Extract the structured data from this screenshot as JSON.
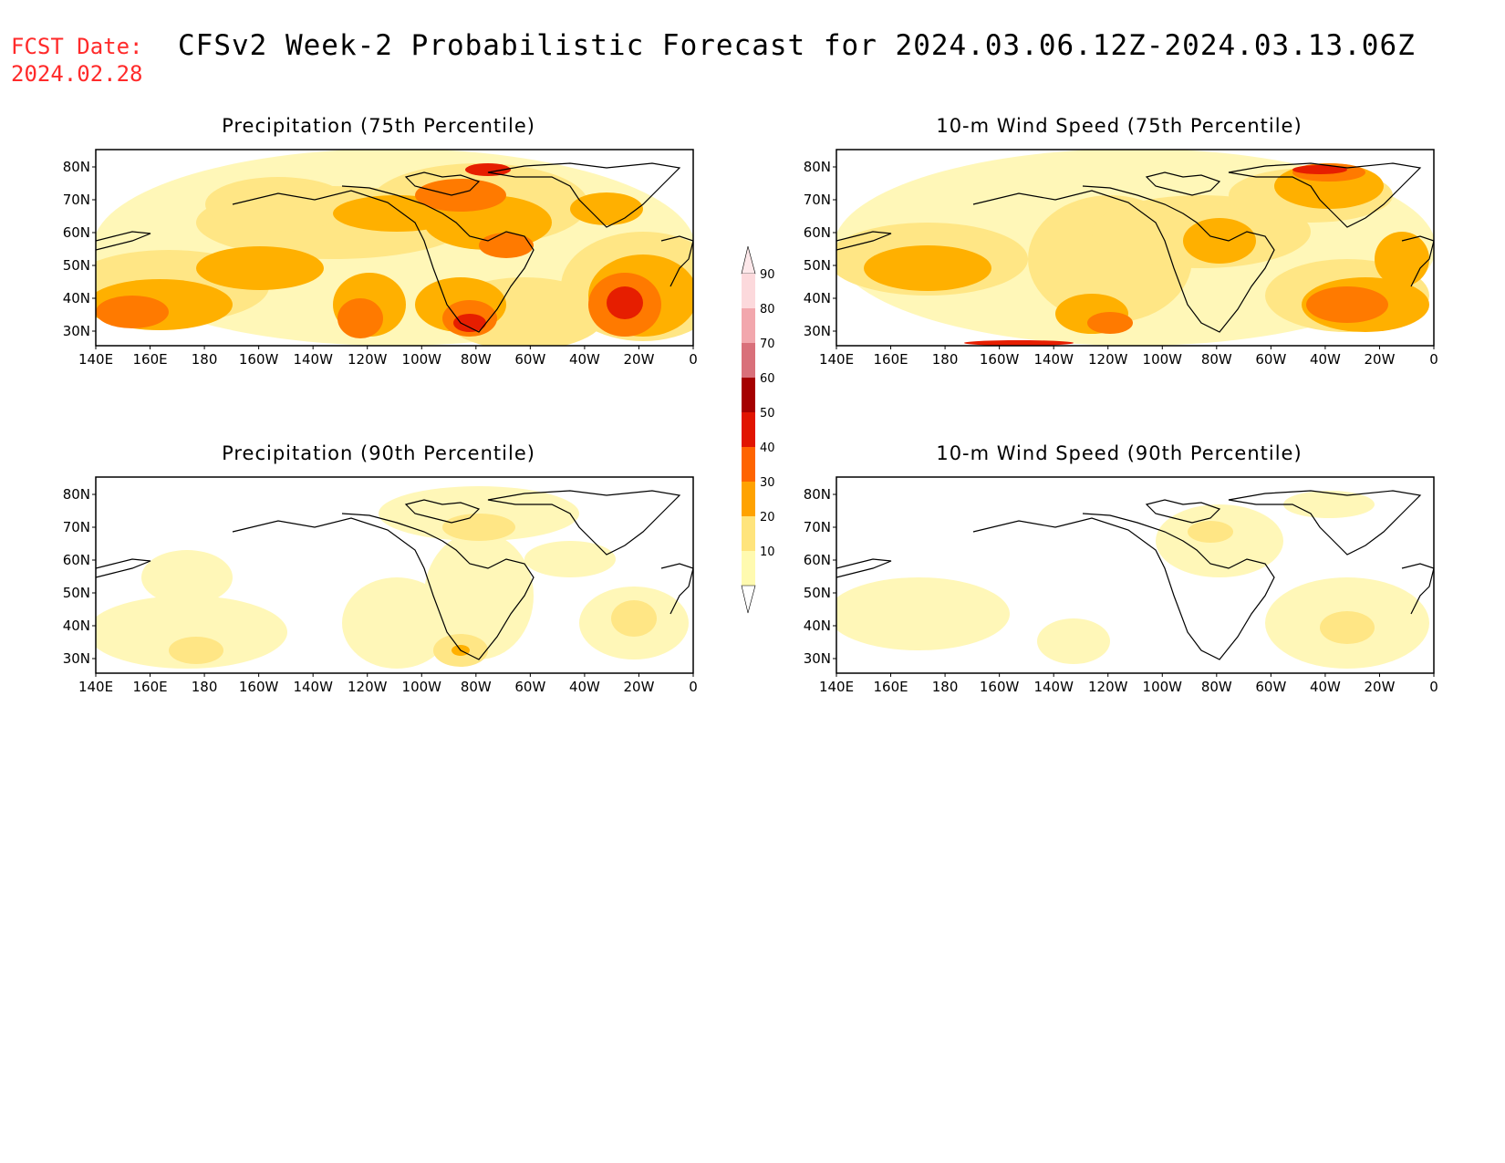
{
  "header": {
    "fcst_label": "FCST Date:",
    "fcst_date": "2024.02.28",
    "title": "CFSv2 Week-2 Probabilistic Forecast for 2024.03.06.12Z-2024.03.13.06Z"
  },
  "panels": [
    {
      "id": "precip75",
      "title": "Precipitation (75th Percentile)"
    },
    {
      "id": "wind75",
      "title": "10-m Wind Speed (75th Percentile)"
    },
    {
      "id": "precip90",
      "title": "Precipitation (90th Percentile)"
    },
    {
      "id": "wind90",
      "title": "10-m Wind Speed (90th Percentile)"
    }
  ],
  "axes": {
    "lat_labels": [
      "80N",
      "70N",
      "60N",
      "50N",
      "40N",
      "30N"
    ],
    "lon_labels": [
      "140E",
      "160E",
      "180",
      "160W",
      "140W",
      "120W",
      "100W",
      "80W",
      "60W",
      "40W",
      "20W",
      "0"
    ]
  },
  "legend": {
    "levels": [
      "10",
      "20",
      "30",
      "40",
      "50",
      "60",
      "70",
      "80",
      "90"
    ],
    "colors": [
      "#fffab0",
      "#ffe47c",
      "#ffa200",
      "#ff6400",
      "#e11400",
      "#a50000",
      "#d9707a",
      "#f2a7ad",
      "#fcd9dc"
    ]
  },
  "colors": {
    "c1": "#fff7b8",
    "c2": "#ffe685",
    "c3": "#ffb000",
    "c4": "#ff7a00",
    "c5": "#e61e00",
    "fcst_text": "#ff2a2a"
  }
}
